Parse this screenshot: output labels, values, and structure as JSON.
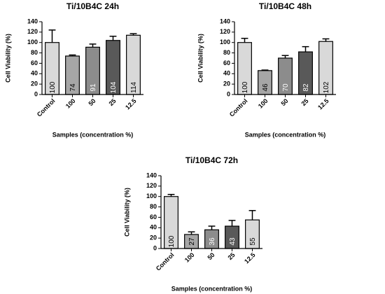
{
  "chart_data": [
    {
      "type": "bar",
      "title": "Ti/10B4C 24h",
      "xlabel": "Samples (concentration %)",
      "ylabel": "Cell Viability (%)",
      "categories": [
        "Control",
        "100",
        "50",
        "25",
        "12.5"
      ],
      "values": [
        100,
        74,
        91,
        104,
        114
      ],
      "errors": [
        24,
        2,
        6,
        8,
        3
      ],
      "colors": [
        "#d9d9d9",
        "#a6a6a6",
        "#8c8c8c",
        "#595959",
        "#d9d9d9"
      ],
      "ylim": [
        0,
        140
      ],
      "yticks": [
        0,
        20,
        40,
        60,
        80,
        100,
        120,
        140
      ],
      "grid": false
    },
    {
      "type": "bar",
      "title": "Ti/10B4C 48h",
      "xlabel": "Samples (concentration %)",
      "ylabel": "Cell Viability (%)",
      "categories": [
        "Control",
        "100",
        "50",
        "25",
        "12.5"
      ],
      "values": [
        100,
        46,
        70,
        82,
        102
      ],
      "errors": [
        8,
        1,
        5,
        10,
        5
      ],
      "colors": [
        "#d9d9d9",
        "#a6a6a6",
        "#8c8c8c",
        "#595959",
        "#d9d9d9"
      ],
      "ylim": [
        0,
        140
      ],
      "yticks": [
        0,
        20,
        40,
        60,
        80,
        100,
        120,
        140
      ],
      "grid": false
    },
    {
      "type": "bar",
      "title": "Ti/10B4C 72h",
      "xlabel": "Samples (concentration %)",
      "ylabel": "Cell Viability (%)",
      "categories": [
        "Control",
        "100",
        "50",
        "25",
        "12.5"
      ],
      "values": [
        100,
        27,
        36,
        43,
        55
      ],
      "errors": [
        4,
        5,
        7,
        11,
        18
      ],
      "colors": [
        "#d9d9d9",
        "#a6a6a6",
        "#8c8c8c",
        "#595959",
        "#d9d9d9"
      ],
      "ylim": [
        0,
        140
      ],
      "yticks": [
        0,
        20,
        40,
        60,
        80,
        100,
        120,
        140
      ],
      "grid": false
    }
  ]
}
